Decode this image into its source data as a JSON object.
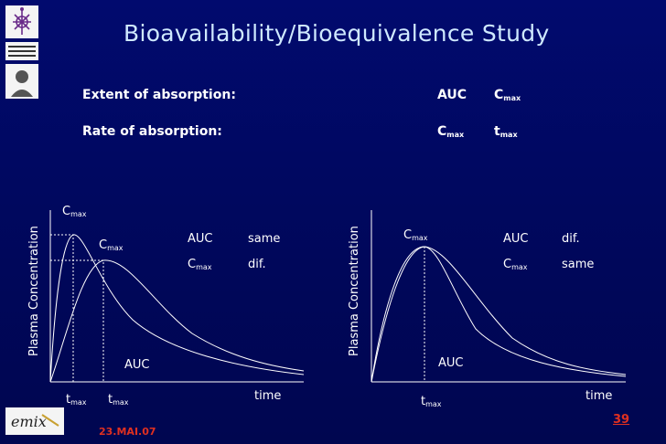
{
  "title": "Bioavailability/Bioequivalence Study",
  "rows": [
    {
      "label": "Extent of absorption:",
      "col1": "AUC",
      "col2_main": "C",
      "col2_sub": "max"
    },
    {
      "label": "Rate of absorption:",
      "col1_main": "C",
      "col1_sub": "max",
      "col2_main": "t",
      "col2_sub": "max"
    }
  ],
  "left_panel": {
    "ylabel": "Plasma Concentration",
    "xlabel": "time",
    "auc_label": "AUC",
    "cmax1": {
      "main": "C",
      "sub": "max"
    },
    "cmax2": {
      "main": "C",
      "sub": "max"
    },
    "tmax1": {
      "main": "t",
      "sub": "max"
    },
    "tmax2": {
      "main": "t",
      "sub": "max"
    },
    "legend": [
      {
        "main": "AUC",
        "sub": "",
        "value": "same"
      },
      {
        "main": "C",
        "sub": "max",
        "value": "dif."
      }
    ]
  },
  "right_panel": {
    "ylabel": "Plasma Concentration",
    "xlabel": "time",
    "auc_label": "AUC",
    "cmax": {
      "main": "C",
      "sub": "max"
    },
    "tmax": {
      "main": "t",
      "sub": "max"
    },
    "legend": [
      {
        "main": "AUC",
        "sub": "",
        "value": "dif."
      },
      {
        "main": "C",
        "sub": "max",
        "value": "same"
      }
    ]
  },
  "footer": {
    "date": "23.MAI.07",
    "page": "39"
  },
  "colors": {
    "background": "#01065e",
    "title": "#cfe9ff",
    "footer": "#e03020"
  },
  "icons": [
    "university-crest-icon",
    "faculty-logo-icon",
    "portrait-icon",
    "emix-logo-icon"
  ]
}
